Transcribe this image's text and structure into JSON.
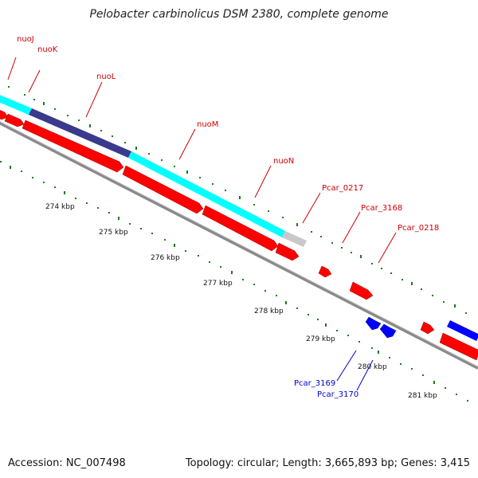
{
  "title": "Pelobacter carbinolicus DSM 2380, complete genome",
  "footer": {
    "accession": "Accession: NC_007498",
    "stats": "Topology: circular; Length: 3,665,893 bp; Genes: 3,415"
  },
  "kbp_labels": [
    "274 kbp",
    "275 kbp",
    "276 kbp",
    "277 kbp",
    "278 kbp",
    "279 kbp",
    "280 kbp",
    "281 kbp"
  ],
  "gene_labels": {
    "nuoJ": "nuoJ",
    "nuoK": "nuoK",
    "nuoL": "nuoL",
    "nuoM": "nuoM",
    "nuoN": "nuoN",
    "pcar0217": "Pcar_0217",
    "pcar3168": "Pcar_3168",
    "pcar0218": "Pcar_0218",
    "pcar3169": "Pcar_3169",
    "pcar3170": "Pcar_3170"
  },
  "colors": {
    "forward_cds": "#ff0000",
    "reverse_cds": "#0000ff",
    "cog_cyan": "#00ffff",
    "cog_navy": "#3a3a8c",
    "cog_gray": "#c8c8c8",
    "backbone": "#888888",
    "tick_green": "#1a7a1a",
    "label_red": "#cc0000",
    "label_blue": "#0000cc"
  }
}
